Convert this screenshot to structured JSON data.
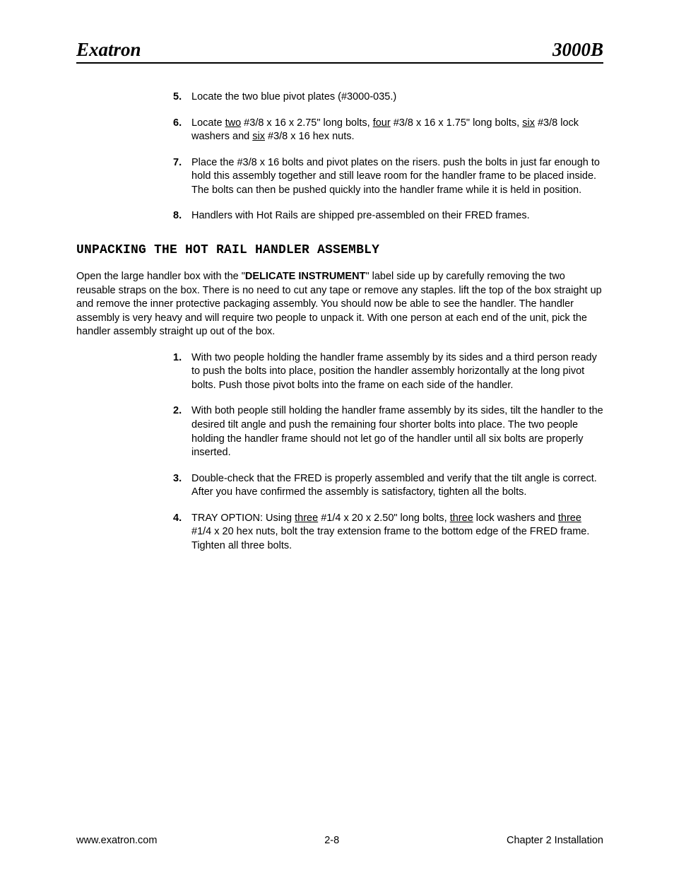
{
  "header": {
    "left": "Exatron",
    "right": "3000B"
  },
  "topList": [
    {
      "num": "5.",
      "html": "Locate the two blue pivot plates (#3000-035.)"
    },
    {
      "num": "6.",
      "html": "Locate <span class='u'>two</span> #3/8 x 16 x 2.75\" long bolts, <span class='u'>four</span> #3/8 x 16 x 1.75\" long bolts, <span class='u'>six</span> #3/8 lock washers and <span class='u'>six</span> #3/8 x 16 hex nuts."
    },
    {
      "num": "7.",
      "html": "Place the #3/8 x 16 bolts and pivot plates on the risers.  push the bolts in just far enough to hold this assembly together and still leave room for the handler frame to be placed inside.  The bolts can then be pushed quickly into the handler frame while it is held in position."
    },
    {
      "num": "8.",
      "html": "Handlers with Hot Rails are shipped pre-assembled on their FRED frames."
    }
  ],
  "sectionHeading": "UNPACKING THE HOT RAIL HANDLER ASSEMBLY",
  "introPara": "Open the large handler box with the \"<span class='b'>DELICATE INSTRUMENT</span>\" label side up by carefully removing the two reusable straps on the box.  There is no need to cut any tape or remove any staples.  lift the top of the box straight up and remove the inner protective packaging assembly.  You should now be able to see the handler.  The handler assembly is very heavy and will require two people to unpack it.  With one person at each end of the unit, pick the handler assembly straight up out of the box.",
  "bottomList": [
    {
      "num": "1.",
      "html": "With two people holding the handler frame assembly by its sides and a third person ready to push the bolts into place, position the handler assembly horizontally at the long pivot bolts.  Push those pivot bolts into the frame on each side of the handler."
    },
    {
      "num": "2.",
      "html": "With both people still holding the handler frame assembly by its sides, tilt the handler to the desired tilt angle and push the remaining four shorter bolts into place.  The two people holding the handler frame should not let go of the handler until all six bolts are properly inserted."
    },
    {
      "num": "3.",
      "html": "Double-check that the FRED is properly assembled and verify that the tilt angle is correct.  After you have confirmed the assembly is satisfactory, tighten all the bolts."
    },
    {
      "num": "4.",
      "html": "TRAY OPTION: Using <span class='u'>three</span> #1/4 x 20 x 2.50\" long bolts, <span class='u'>three</span> lock washers and <span class='u'>three</span> #1/4 x 20 hex nuts, bolt the tray extension frame to the bottom edge of the FRED frame.  Tighten all three bolts."
    }
  ],
  "footer": {
    "left": "www.exatron.com",
    "center": "2-8",
    "right": "Chapter 2 Installation"
  }
}
